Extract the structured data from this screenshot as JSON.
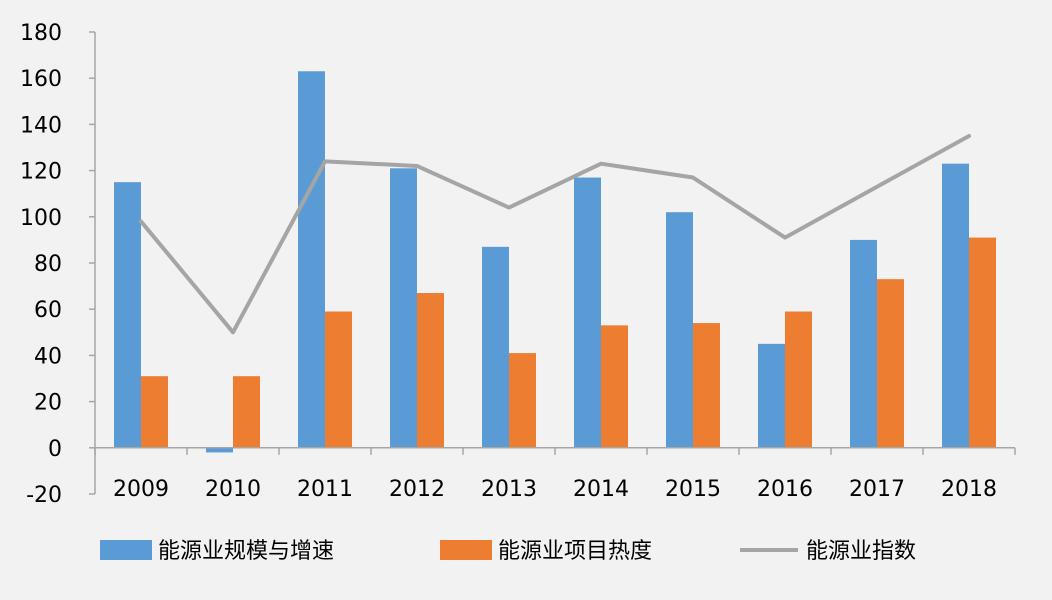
{
  "chart_data": {
    "type": "bar",
    "categories": [
      "2009",
      "2010",
      "2011",
      "2012",
      "2013",
      "2014",
      "2015",
      "2016",
      "2017",
      "2018"
    ],
    "series": [
      {
        "name": "能源业规模与增速",
        "kind": "bar",
        "color": "#5b9bd5",
        "values": [
          115,
          -2,
          163,
          121,
          87,
          117,
          102,
          45,
          90,
          123
        ]
      },
      {
        "name": "能源业项目热度",
        "kind": "bar",
        "color": "#ed7d31",
        "values": [
          31,
          31,
          59,
          67,
          41,
          53,
          54,
          59,
          73,
          91
        ]
      },
      {
        "name": "能源业指数",
        "kind": "line",
        "color": "#a5a5a5",
        "values": [
          98,
          50,
          124,
          122,
          104,
          123,
          117,
          91,
          113,
          135
        ]
      }
    ],
    "ylim": [
      -20,
      180
    ],
    "yticks": [
      -20,
      0,
      20,
      40,
      60,
      80,
      100,
      120,
      140,
      160,
      180
    ],
    "grid": false,
    "legend_position": "bottom"
  }
}
